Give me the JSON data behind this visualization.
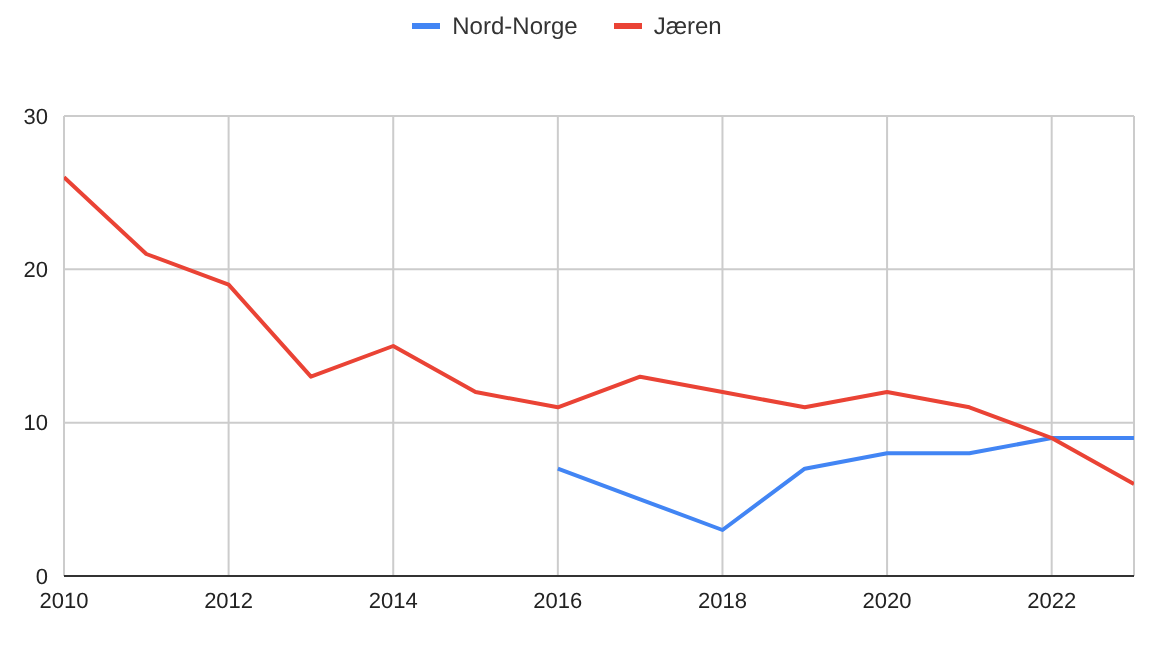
{
  "chart_data": {
    "type": "line",
    "xlim": [
      2010,
      2023
    ],
    "xticks": [
      2010,
      2012,
      2014,
      2016,
      2018,
      2020,
      2022
    ],
    "ylim": [
      0,
      30
    ],
    "yticks": [
      0,
      10,
      20,
      30
    ],
    "grid": true,
    "legend": "top",
    "marker": "none",
    "line_style": "solid",
    "series": [
      {
        "name": "Nord-Norge",
        "color": "#4285f4",
        "x": [
          2016,
          2017,
          2018,
          2019,
          2020,
          2021,
          2022,
          2023
        ],
        "values": [
          7,
          5,
          3,
          7,
          8,
          8,
          9,
          9
        ]
      },
      {
        "name": "Jæren",
        "color": "#ea4335",
        "x": [
          2010,
          2011,
          2012,
          2013,
          2014,
          2015,
          2016,
          2017,
          2018,
          2019,
          2020,
          2021,
          2022,
          2023
        ],
        "values": [
          26,
          21,
          19,
          13,
          15,
          12,
          11,
          13,
          12,
          11,
          12,
          11,
          9,
          6
        ]
      }
    ]
  }
}
